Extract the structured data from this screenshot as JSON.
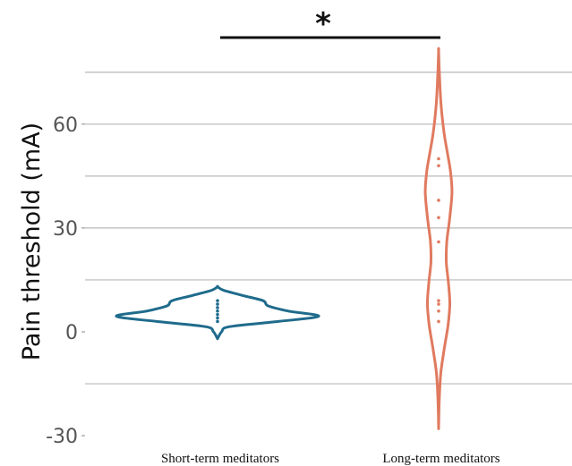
{
  "chart_data": {
    "type": "violin",
    "categories": [
      "Short-term meditators",
      "Long-term meditators"
    ],
    "ylabel": "Pain threshold (mA)",
    "xlabel": "",
    "ylim": [
      -30,
      80
    ],
    "yticks": [
      -30,
      0,
      30,
      60
    ],
    "grid": true,
    "significance": {
      "label": "*",
      "between": [
        "Short-term meditators",
        "Long-term meditators"
      ]
    },
    "series": [
      {
        "category": "Short-term meditators",
        "color": "#1f6b8c",
        "points": [
          3,
          4,
          5,
          6,
          7,
          8,
          9
        ],
        "range": [
          -2,
          13
        ],
        "density_profile": [
          {
            "y": -2,
            "w": 0.0
          },
          {
            "y": 0,
            "w": 0.04
          },
          {
            "y": 1.5,
            "w": 0.12
          },
          {
            "y": 3,
            "w": 0.6
          },
          {
            "y": 4.5,
            "w": 1.0
          },
          {
            "y": 6,
            "w": 0.7
          },
          {
            "y": 7.5,
            "w": 0.5
          },
          {
            "y": 9,
            "w": 0.45
          },
          {
            "y": 10.5,
            "w": 0.25
          },
          {
            "y": 12,
            "w": 0.06
          },
          {
            "y": 13,
            "w": 0.0
          }
        ]
      },
      {
        "category": "Long-term meditators",
        "color": "#e07a5f",
        "points": [
          3,
          6,
          8,
          9,
          26,
          33,
          38,
          48,
          50
        ],
        "range": [
          -28,
          81
        ],
        "density_profile": [
          {
            "y": -28,
            "w": 0.0
          },
          {
            "y": -20,
            "w": 0.03
          },
          {
            "y": -12,
            "w": 0.1
          },
          {
            "y": -5,
            "w": 0.26
          },
          {
            "y": 2,
            "w": 0.44
          },
          {
            "y": 8,
            "w": 0.52
          },
          {
            "y": 14,
            "w": 0.46
          },
          {
            "y": 20,
            "w": 0.36
          },
          {
            "y": 26,
            "w": 0.38
          },
          {
            "y": 32,
            "w": 0.5
          },
          {
            "y": 40,
            "w": 0.62
          },
          {
            "y": 46,
            "w": 0.56
          },
          {
            "y": 52,
            "w": 0.4
          },
          {
            "y": 58,
            "w": 0.24
          },
          {
            "y": 66,
            "w": 0.11
          },
          {
            "y": 74,
            "w": 0.04
          },
          {
            "y": 81,
            "w": 0.0
          }
        ]
      }
    ]
  }
}
